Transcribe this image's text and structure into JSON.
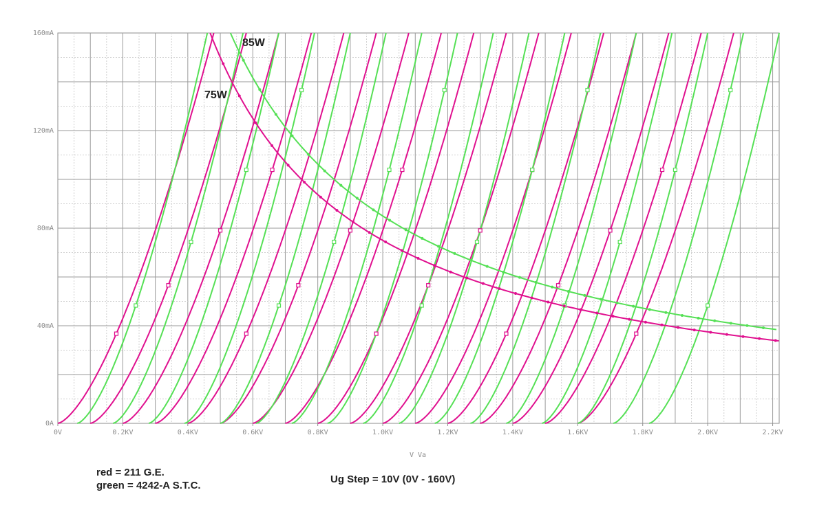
{
  "chart_data": {
    "type": "line",
    "title": "",
    "xlabel": "V Va",
    "ylabel": "",
    "xlim": [
      0,
      2.22
    ],
    "ylim": [
      0,
      160
    ],
    "x_unit": "KV",
    "y_unit": "mA",
    "grid": true,
    "x_ticks": [
      "0V",
      "0.2KV",
      "0.4KV",
      "0.6KV",
      "0.8KV",
      "1.0KV",
      "1.2KV",
      "1.4KV",
      "1.6KV",
      "1.8KV",
      "2.0KV",
      "2.2KV"
    ],
    "y_ticks": [
      "0A",
      "40mA",
      "80mA",
      "120mA",
      "160mA"
    ],
    "colors": {
      "red": "#e0108f",
      "green": "#55e055",
      "grid": "#9a9a9a"
    },
    "grid_step": {
      "label": "Ug Step = 10V (0V - 160V)",
      "grid_voltages": [
        0,
        10,
        20,
        30,
        40,
        50,
        60,
        70,
        80,
        90,
        100,
        110,
        120,
        130,
        140,
        150,
        160
      ]
    },
    "series": [
      {
        "name": "211 G.E.",
        "color": "red",
        "curve_family": "plate_characteristics",
        "current_onset_kv": [
          0.0,
          0.1,
          0.2,
          0.3,
          0.4,
          0.5,
          0.6,
          0.7,
          0.8,
          0.9,
          1.0,
          1.1,
          1.2,
          1.3,
          1.4,
          1.5,
          1.6
        ],
        "current_at_plus_0_48kv_ma": 160
      },
      {
        "name": "4242-A S.T.C.",
        "color": "green",
        "curve_family": "plate_characteristics",
        "current_onset_kv": [
          0.06,
          0.17,
          0.28,
          0.39,
          0.5,
          0.61,
          0.72,
          0.83,
          0.94,
          1.05,
          1.16,
          1.27,
          1.38,
          1.49,
          1.6,
          1.71,
          1.82
        ],
        "current_at_plus_0_40kv_ma": 160
      }
    ],
    "dissipation_curves": [
      {
        "label": "75W",
        "watts": 75,
        "color": "red"
      },
      {
        "label": "85W",
        "watts": 85,
        "color": "green"
      }
    ]
  },
  "legend": {
    "red_label": "red = 211 G.E.",
    "green_label": "green = 4242-A S.T.C.",
    "step_label": "Ug Step = 10V (0V - 160V)"
  }
}
